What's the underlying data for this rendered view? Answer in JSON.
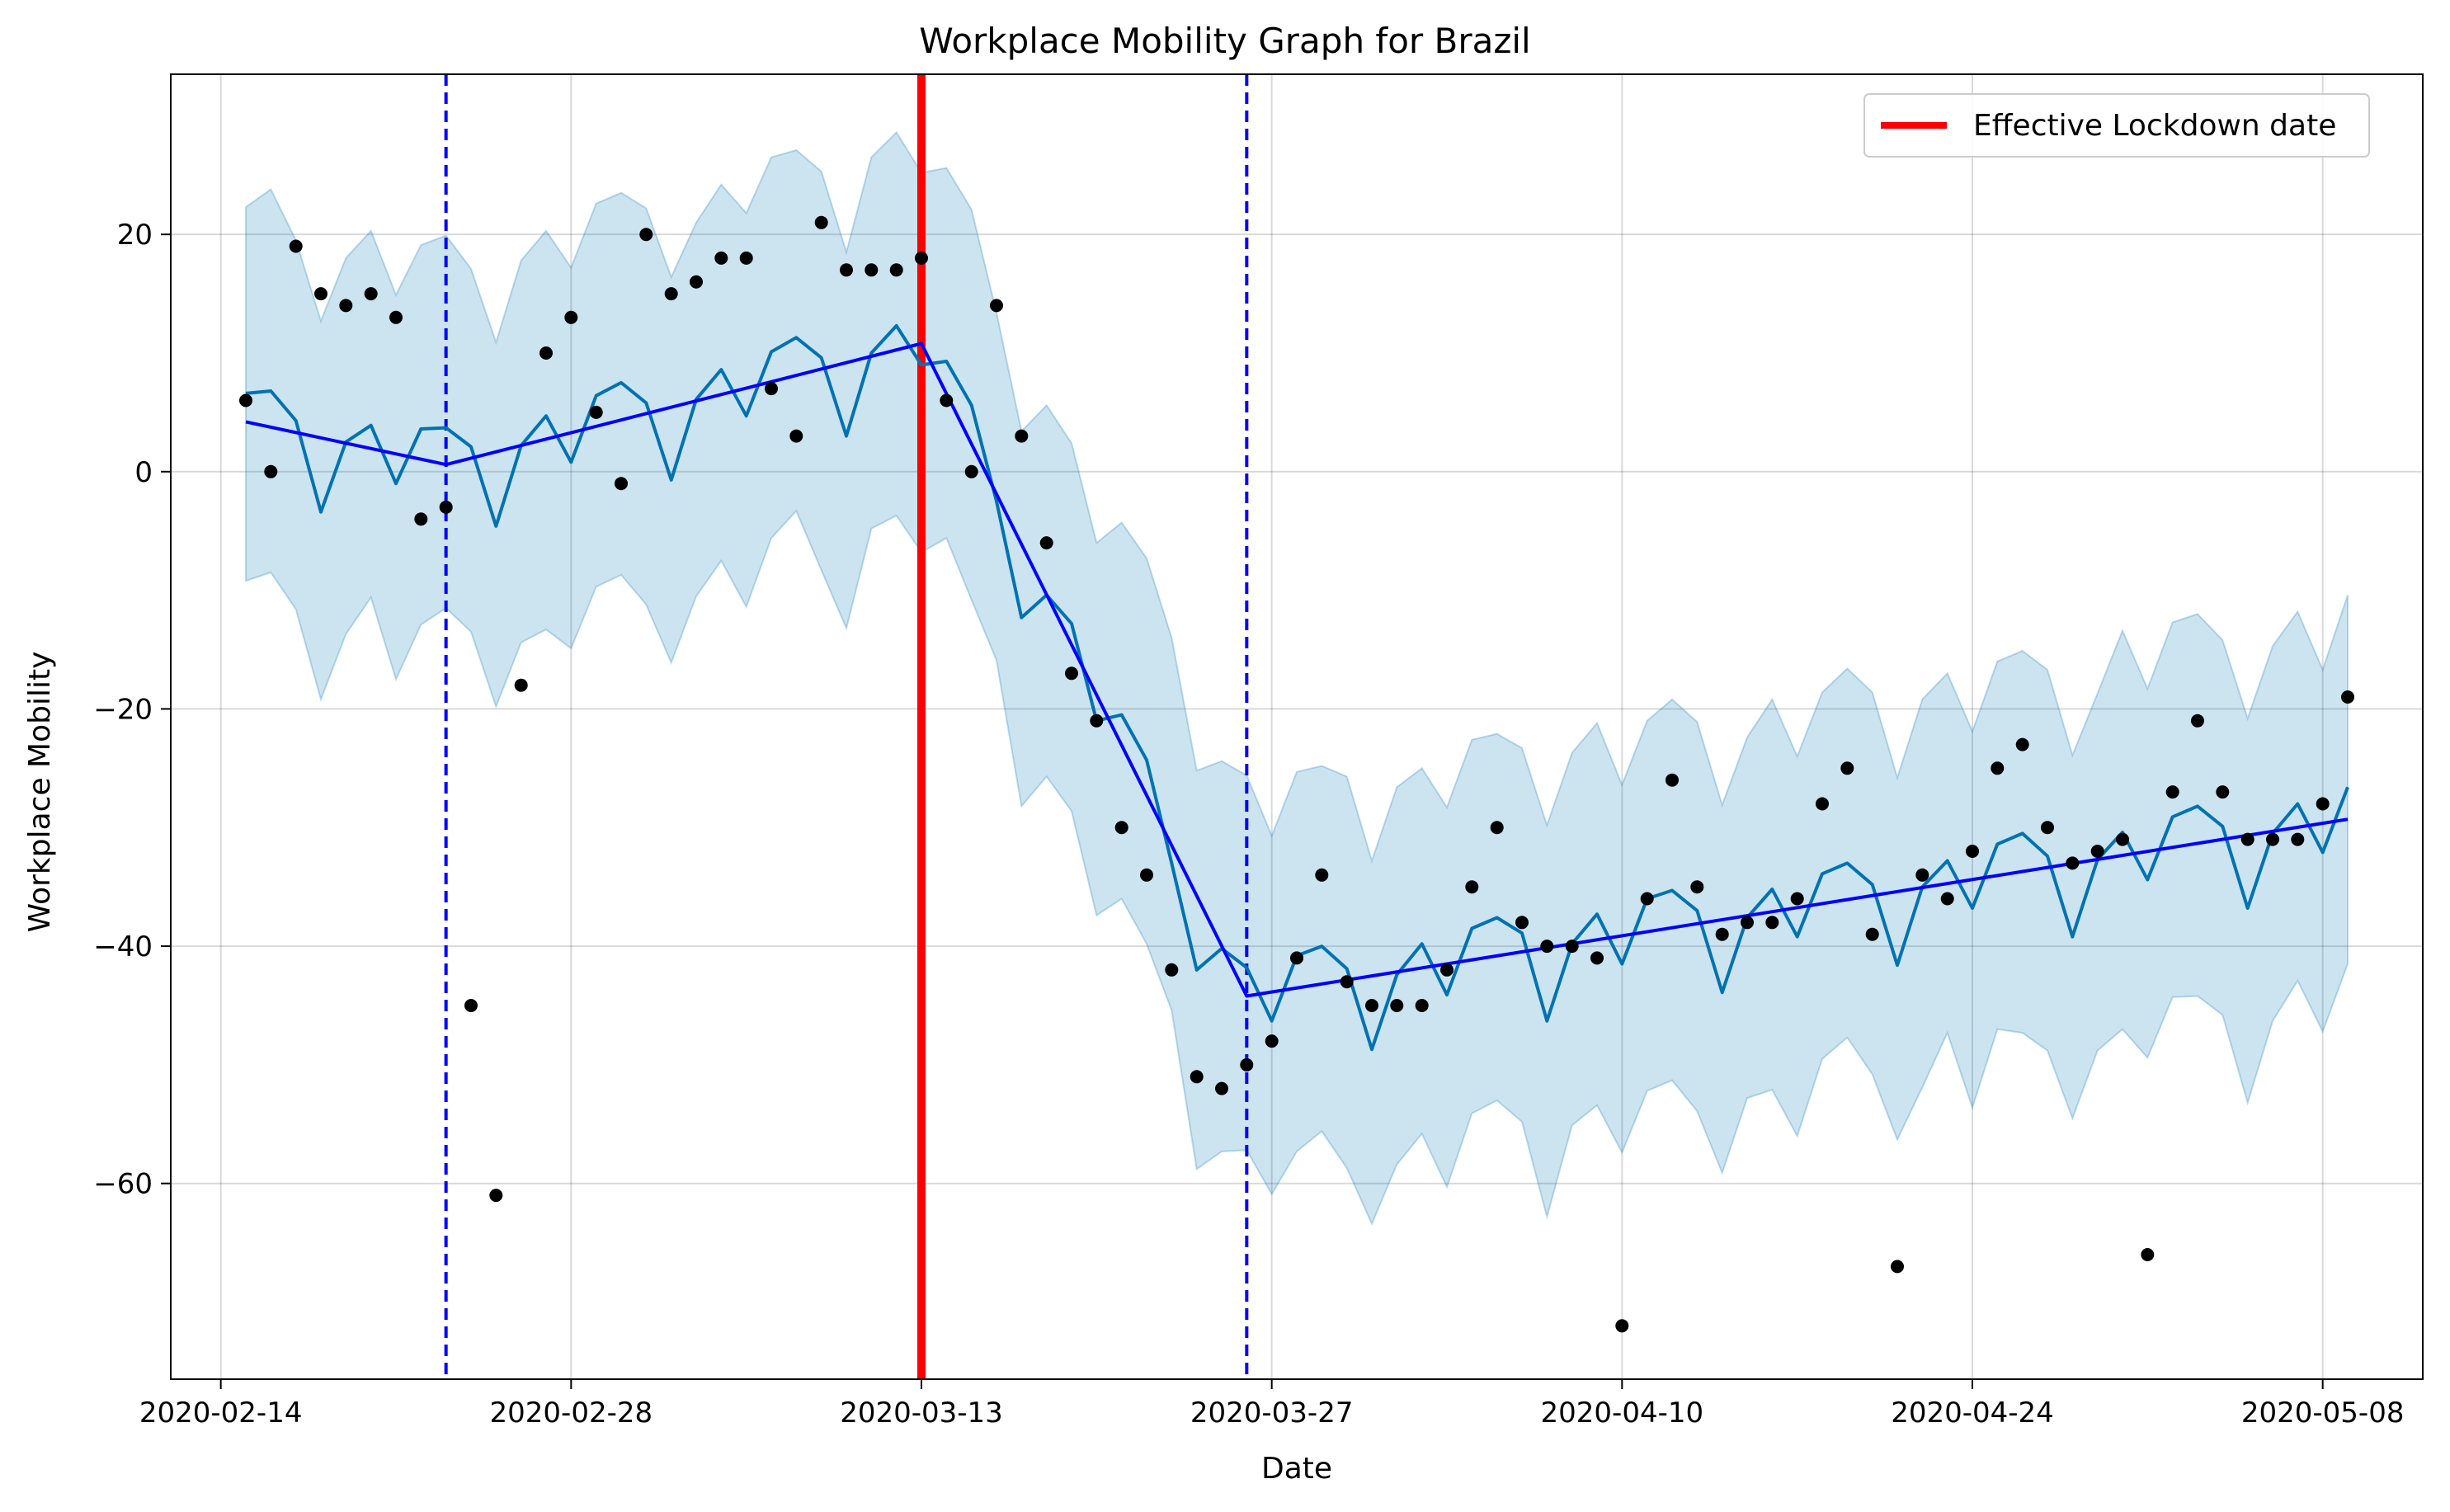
{
  "chart_data": {
    "type": "line",
    "title": "Workplace Mobility Graph for Brazil",
    "xlabel": "Date",
    "ylabel": "Workplace Mobility",
    "x_axis_type": "date",
    "xlim": [
      "2020-02-12",
      "2020-05-12"
    ],
    "ylim": [
      -76.5,
      33.5
    ],
    "x_ticks": [
      "2020-02-14",
      "2020-02-28",
      "2020-03-13",
      "2020-03-27",
      "2020-04-10",
      "2020-04-24",
      "2020-05-08"
    ],
    "y_ticks": [
      -60,
      -40,
      -20,
      0,
      20
    ],
    "grid": true,
    "legend": {
      "placement": "top-right",
      "entries": [
        {
          "label": "Effective Lockdown date",
          "color": "#ff0000"
        }
      ]
    },
    "colors": {
      "observed": "#000000",
      "forecast": "#0072b2",
      "interval": "#0072b2",
      "trend": "#0000ff",
      "changepoint": "#0000ff",
      "lockdown": "#ff0000"
    },
    "lockdown_date": "2020-03-13",
    "changepoints": [
      "2020-02-23",
      "2020-03-26"
    ],
    "trend": {
      "dates": [
        "2020-02-15",
        "2020-02-23",
        "2020-03-13",
        "2020-03-26",
        "2020-05-09"
      ],
      "values": [
        4.2,
        0.6,
        10.8,
        -44.2,
        -29.3
      ]
    },
    "series": [
      {
        "name": "observed",
        "dates": [
          "2020-02-15",
          "2020-02-16",
          "2020-02-17",
          "2020-02-18",
          "2020-02-19",
          "2020-02-20",
          "2020-02-21",
          "2020-02-22",
          "2020-02-23",
          "2020-02-24",
          "2020-02-25",
          "2020-02-26",
          "2020-02-27",
          "2020-02-28",
          "2020-02-29",
          "2020-03-01",
          "2020-03-02",
          "2020-03-03",
          "2020-03-04",
          "2020-03-05",
          "2020-03-06",
          "2020-03-07",
          "2020-03-08",
          "2020-03-09",
          "2020-03-10",
          "2020-03-11",
          "2020-03-12",
          "2020-03-13",
          "2020-03-14",
          "2020-03-15",
          "2020-03-16",
          "2020-03-17",
          "2020-03-18",
          "2020-03-19",
          "2020-03-20",
          "2020-03-21",
          "2020-03-22",
          "2020-03-23",
          "2020-03-24",
          "2020-03-25",
          "2020-03-26",
          "2020-03-27",
          "2020-03-28",
          "2020-03-29",
          "2020-03-30",
          "2020-03-31",
          "2020-04-01",
          "2020-04-02",
          "2020-04-03",
          "2020-04-04",
          "2020-04-05",
          "2020-04-06",
          "2020-04-07",
          "2020-04-08",
          "2020-04-09",
          "2020-04-10",
          "2020-04-11",
          "2020-04-12",
          "2020-04-13",
          "2020-04-14",
          "2020-04-15",
          "2020-04-16",
          "2020-04-17",
          "2020-04-18",
          "2020-04-19",
          "2020-04-20",
          "2020-04-21",
          "2020-04-22",
          "2020-04-23",
          "2020-04-24",
          "2020-04-25",
          "2020-04-26",
          "2020-04-27",
          "2020-04-28",
          "2020-04-29",
          "2020-04-30",
          "2020-05-01",
          "2020-05-02",
          "2020-05-03",
          "2020-05-04",
          "2020-05-05",
          "2020-05-06",
          "2020-05-07",
          "2020-05-08",
          "2020-05-09"
        ],
        "values": [
          6,
          0,
          19,
          15,
          14,
          15,
          13,
          -4,
          -3,
          -45,
          -61,
          -18,
          10,
          13,
          5,
          -1,
          20,
          15,
          16,
          18,
          18,
          7,
          3,
          21,
          17,
          17,
          17,
          18,
          6,
          0,
          14,
          3,
          -6,
          -17,
          -21,
          -30,
          -34,
          -42,
          -51,
          -52,
          -50,
          -48,
          -41,
          -34,
          -43,
          -45,
          -45,
          -45,
          -42,
          -35,
          -30,
          -38,
          -40,
          -40,
          -41,
          -72,
          -36,
          -26,
          -35,
          -39,
          -38,
          -38,
          -36,
          -28,
          -25,
          -39,
          -67,
          -34,
          -36,
          -32,
          -25,
          -23,
          -30,
          -33,
          -32,
          -31,
          -66,
          -27,
          -21,
          -27,
          -31,
          -31,
          -31,
          -28,
          -19
        ]
      },
      {
        "name": "forecast",
        "dates": [
          "2020-02-15",
          "2020-02-16",
          "2020-02-17",
          "2020-02-18",
          "2020-02-19",
          "2020-02-20",
          "2020-02-21",
          "2020-02-22",
          "2020-02-23",
          "2020-02-24",
          "2020-02-25",
          "2020-02-26",
          "2020-02-27",
          "2020-02-28",
          "2020-02-29",
          "2020-03-01",
          "2020-03-02",
          "2020-03-03",
          "2020-03-04",
          "2020-03-05",
          "2020-03-06",
          "2020-03-07",
          "2020-03-08",
          "2020-03-09",
          "2020-03-10",
          "2020-03-11",
          "2020-03-12",
          "2020-03-13",
          "2020-03-14",
          "2020-03-15",
          "2020-03-16",
          "2020-03-17",
          "2020-03-18",
          "2020-03-19",
          "2020-03-20",
          "2020-03-21",
          "2020-03-22",
          "2020-03-23",
          "2020-03-24",
          "2020-03-25",
          "2020-03-26",
          "2020-03-27",
          "2020-03-28",
          "2020-03-29",
          "2020-03-30",
          "2020-03-31",
          "2020-04-01",
          "2020-04-02",
          "2020-04-03",
          "2020-04-04",
          "2020-04-05",
          "2020-04-06",
          "2020-04-07",
          "2020-04-08",
          "2020-04-09",
          "2020-04-10",
          "2020-04-11",
          "2020-04-12",
          "2020-04-13",
          "2020-04-14",
          "2020-04-15",
          "2020-04-16",
          "2020-04-17",
          "2020-04-18",
          "2020-04-19",
          "2020-04-20",
          "2020-04-21",
          "2020-04-22",
          "2020-04-23",
          "2020-04-24",
          "2020-04-25",
          "2020-04-26",
          "2020-04-27",
          "2020-04-28",
          "2020-04-29",
          "2020-04-30",
          "2020-05-01",
          "2020-05-02",
          "2020-05-03",
          "2020-05-04",
          "2020-05-05",
          "2020-05-06",
          "2020-05-07",
          "2020-05-08",
          "2020-05-09"
        ],
        "values": [
          6.6,
          6.8,
          4.3,
          -3.4,
          2.5,
          3.9,
          -1.0,
          3.6,
          3.7,
          2.1,
          -4.6,
          2.2,
          4.7,
          0.8,
          6.4,
          7.5,
          5.8,
          -0.7,
          6.1,
          8.6,
          4.7,
          10.1,
          11.3,
          9.6,
          3.0,
          10.0,
          12.3,
          9.0,
          9.3,
          5.6,
          -2.5,
          -12.3,
          -10.4,
          -12.8,
          -21.0,
          -20.5,
          -24.3,
          -33.0,
          -42.0,
          -40.2,
          -41.8,
          -46.3,
          -40.8,
          -40.0,
          -41.9,
          -48.7,
          -42.4,
          -39.8,
          -44.1,
          -38.5,
          -37.6,
          -38.9,
          -46.3,
          -39.8,
          -37.3,
          -41.5,
          -36.0,
          -35.3,
          -37.0,
          -43.9,
          -37.6,
          -35.2,
          -39.2,
          -33.9,
          -33.0,
          -34.8,
          -41.6,
          -35.0,
          -32.8,
          -36.8,
          -31.4,
          -30.5,
          -32.4,
          -39.2,
          -32.7,
          -30.4,
          -34.4,
          -29.1,
          -28.2,
          -29.9,
          -36.8,
          -30.5,
          -28.0,
          -32.1,
          -26.6
        ]
      },
      {
        "name": "uncertainty interval",
        "dates": [
          "2020-02-15",
          "2020-02-16",
          "2020-02-17",
          "2020-02-18",
          "2020-02-19",
          "2020-02-20",
          "2020-02-21",
          "2020-02-22",
          "2020-02-23",
          "2020-02-24",
          "2020-02-25",
          "2020-02-26",
          "2020-02-27",
          "2020-02-28",
          "2020-02-29",
          "2020-03-01",
          "2020-03-02",
          "2020-03-03",
          "2020-03-04",
          "2020-03-05",
          "2020-03-06",
          "2020-03-07",
          "2020-03-08",
          "2020-03-09",
          "2020-03-10",
          "2020-03-11",
          "2020-03-12",
          "2020-03-13",
          "2020-03-14",
          "2020-03-15",
          "2020-03-16",
          "2020-03-17",
          "2020-03-18",
          "2020-03-19",
          "2020-03-20",
          "2020-03-21",
          "2020-03-22",
          "2020-03-23",
          "2020-03-24",
          "2020-03-25",
          "2020-03-26",
          "2020-03-27",
          "2020-03-28",
          "2020-03-29",
          "2020-03-30",
          "2020-03-31",
          "2020-04-01",
          "2020-04-02",
          "2020-04-03",
          "2020-04-04",
          "2020-04-05",
          "2020-04-06",
          "2020-04-07",
          "2020-04-08",
          "2020-04-09",
          "2020-04-10",
          "2020-04-11",
          "2020-04-12",
          "2020-04-13",
          "2020-04-14",
          "2020-04-15",
          "2020-04-16",
          "2020-04-17",
          "2020-04-18",
          "2020-04-19",
          "2020-04-20",
          "2020-04-21",
          "2020-04-22",
          "2020-04-23",
          "2020-04-24",
          "2020-04-25",
          "2020-04-26",
          "2020-04-27",
          "2020-04-28",
          "2020-04-29",
          "2020-04-30",
          "2020-05-01",
          "2020-05-02",
          "2020-05-03",
          "2020-05-04",
          "2020-05-05",
          "2020-05-06",
          "2020-05-07",
          "2020-05-08",
          "2020-05-09"
        ],
        "upper": [
          22.3,
          23.8,
          19.5,
          12.7,
          18.0,
          20.3,
          14.9,
          19.1,
          19.9,
          17.1,
          10.9,
          17.8,
          20.3,
          17.2,
          22.6,
          23.5,
          22.2,
          16.4,
          21.0,
          24.2,
          21.8,
          26.5,
          27.1,
          25.3,
          18.5,
          26.5,
          28.6,
          25.2,
          25.6,
          22.1,
          13.4,
          3.4,
          5.6,
          2.4,
          -6.0,
          -4.3,
          -7.3,
          -14.0,
          -25.2,
          -24.4,
          -25.6,
          -30.7,
          -25.3,
          -24.8,
          -25.7,
          -32.8,
          -26.6,
          -25.0,
          -28.3,
          -22.6,
          -22.1,
          -23.3,
          -29.8,
          -23.7,
          -21.2,
          -26.4,
          -21.0,
          -19.2,
          -21.1,
          -28.1,
          -22.4,
          -19.2,
          -24.0,
          -18.6,
          -16.6,
          -18.6,
          -25.8,
          -19.2,
          -17.0,
          -21.9,
          -16.0,
          -15.1,
          -16.7,
          -23.9,
          -18.7,
          -13.4,
          -18.3,
          -12.7,
          -12.0,
          -14.2,
          -20.8,
          -14.7,
          -11.8,
          -16.7,
          -10.4
        ],
        "lower": [
          -9.2,
          -8.5,
          -11.6,
          -19.2,
          -13.7,
          -10.6,
          -17.5,
          -12.9,
          -11.5,
          -13.5,
          -19.8,
          -14.4,
          -13.3,
          -14.9,
          -9.7,
          -8.7,
          -11.2,
          -16.1,
          -10.5,
          -7.5,
          -11.4,
          -5.6,
          -3.3,
          -8.3,
          -13.2,
          -4.8,
          -3.7,
          -6.8,
          -5.6,
          -10.8,
          -15.9,
          -28.2,
          -25.7,
          -28.6,
          -37.4,
          -36.0,
          -39.8,
          -45.4,
          -58.8,
          -57.3,
          -57.2,
          -60.9,
          -57.3,
          -55.6,
          -58.7,
          -63.4,
          -58.4,
          -55.8,
          -60.3,
          -54.1,
          -53.0,
          -54.8,
          -62.8,
          -55.1,
          -53.4,
          -57.4,
          -52.2,
          -51.3,
          -53.9,
          -59.1,
          -52.8,
          -52.1,
          -56.0,
          -49.5,
          -47.7,
          -50.8,
          -56.3,
          -51.9,
          -47.3,
          -53.6,
          -47.0,
          -47.3,
          -48.8,
          -54.5,
          -48.8,
          -47.0,
          -49.4,
          -44.3,
          -44.2,
          -45.8,
          -53.2,
          -46.3,
          -42.9,
          -47.2,
          -41.5
        ]
      }
    ]
  }
}
